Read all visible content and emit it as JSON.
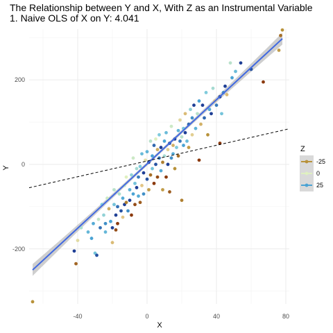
{
  "chart_data": {
    "type": "scatter",
    "title": "The Relationship between Y and X, With Z as an Instrumental Variable",
    "subtitle": "1. Naive OLS of  X on Y: 4.041",
    "xlabel": "X",
    "ylabel": "Y",
    "xlim": [
      -68,
      82
    ],
    "ylim": [
      -330,
      320
    ],
    "x_ticks": [
      -40,
      0,
      40,
      80
    ],
    "x_tick_labels": [
      "-40",
      "0",
      "40",
      "80"
    ],
    "y_ticks": [
      -200,
      0,
      200
    ],
    "y_tick_labels": [
      "-200",
      "0",
      "200"
    ],
    "grid": true,
    "legend": {
      "title": "Z",
      "position": "right",
      "entries": [
        {
          "label": "-25",
          "color": "#b8923a"
        },
        {
          "label": "0",
          "color": "#dff0c0"
        },
        {
          "label": "25",
          "color": "#4aa3d4"
        }
      ]
    },
    "fit_line": {
      "intercept": 1,
      "slope": 3.8,
      "color": "#4169e1",
      "band_color": "#bdbdbd",
      "band_halfwidth_ends": 14,
      "band_halfwidth_center": 4
    },
    "naive_line": {
      "intercept": 8,
      "slope": 0.93,
      "style": "dashed",
      "color": "#000000"
    },
    "z_color_scale": [
      "#8b3a0e",
      "#b8923a",
      "#e3c585",
      "#dff0c0",
      "#7fcbdc",
      "#4aa3d4",
      "#1f3f95"
    ],
    "points": [
      {
        "x": -66,
        "y": -325,
        "z": -20
      },
      {
        "x": -42,
        "y": -205,
        "z": 30
      },
      {
        "x": -41,
        "y": -235,
        "z": -25
      },
      {
        "x": -40,
        "y": -180,
        "z": -5
      },
      {
        "x": -38,
        "y": -150,
        "z": 5
      },
      {
        "x": -34,
        "y": -160,
        "z": 15
      },
      {
        "x": -32,
        "y": -175,
        "z": 20
      },
      {
        "x": -31,
        "y": -140,
        "z": 18
      },
      {
        "x": -30,
        "y": -210,
        "z": 12
      },
      {
        "x": -29,
        "y": -215,
        "z": 28
      },
      {
        "x": -28,
        "y": -130,
        "z": 3
      },
      {
        "x": -27,
        "y": -150,
        "z": 25
      },
      {
        "x": -26,
        "y": -95,
        "z": 10
      },
      {
        "x": -25,
        "y": -120,
        "z": 8
      },
      {
        "x": -24,
        "y": -140,
        "z": 22
      },
      {
        "x": -24,
        "y": -160,
        "z": 15
      },
      {
        "x": -23,
        "y": -80,
        "z": 2
      },
      {
        "x": -22,
        "y": -105,
        "z": -15
      },
      {
        "x": -21,
        "y": -135,
        "z": 20
      },
      {
        "x": -20,
        "y": -150,
        "z": 30
      },
      {
        "x": -20,
        "y": -185,
        "z": -12
      },
      {
        "x": -19,
        "y": -60,
        "z": 4
      },
      {
        "x": -19,
        "y": -95,
        "z": 12
      },
      {
        "x": -18,
        "y": -120,
        "z": 30
      },
      {
        "x": -18,
        "y": -155,
        "z": -28
      },
      {
        "x": -17,
        "y": -100,
        "z": 25
      },
      {
        "x": -17,
        "y": -140,
        "z": -30
      },
      {
        "x": -16,
        "y": -70,
        "z": 5
      },
      {
        "x": -15,
        "y": -110,
        "z": 28
      },
      {
        "x": -14,
        "y": -125,
        "z": -10
      },
      {
        "x": -14,
        "y": -80,
        "z": 18
      },
      {
        "x": -13,
        "y": -95,
        "z": 30
      },
      {
        "x": -13,
        "y": -50,
        "z": 3
      },
      {
        "x": -12,
        "y": -30,
        "z": 0
      },
      {
        "x": -12,
        "y": -90,
        "z": -22
      },
      {
        "x": -11,
        "y": -110,
        "z": 22
      },
      {
        "x": -10,
        "y": -85,
        "z": 30
      },
      {
        "x": -10,
        "y": -60,
        "z": 16
      },
      {
        "x": -9,
        "y": -120,
        "z": -30
      },
      {
        "x": -9,
        "y": -25,
        "z": 8
      },
      {
        "x": -8,
        "y": -70,
        "z": 20
      },
      {
        "x": -8,
        "y": 15,
        "z": 2
      },
      {
        "x": -7,
        "y": -45,
        "z": 12
      },
      {
        "x": -7,
        "y": -95,
        "z": -28
      },
      {
        "x": -6,
        "y": -55,
        "z": 30
      },
      {
        "x": -6,
        "y": -10,
        "z": 6
      },
      {
        "x": -5,
        "y": -75,
        "z": 18
      },
      {
        "x": -5,
        "y": -30,
        "z": 24
      },
      {
        "x": -4,
        "y": -90,
        "z": -26
      },
      {
        "x": -4,
        "y": -5,
        "z": 10
      },
      {
        "x": -3,
        "y": -50,
        "z": -10
      },
      {
        "x": -3,
        "y": 25,
        "z": 14
      },
      {
        "x": -2,
        "y": -20,
        "z": 30
      },
      {
        "x": -2,
        "y": -70,
        "z": 22
      },
      {
        "x": -1,
        "y": 10,
        "z": -4
      },
      {
        "x": 0,
        "y": -35,
        "z": 28
      },
      {
        "x": 0,
        "y": 30,
        "z": 16
      },
      {
        "x": 1,
        "y": -60,
        "z": -18
      },
      {
        "x": 1,
        "y": 5,
        "z": 30
      },
      {
        "x": 2,
        "y": -25,
        "z": -24
      },
      {
        "x": 2,
        "y": 55,
        "z": 4
      },
      {
        "x": 3,
        "y": 20,
        "z": 20
      },
      {
        "x": 3,
        "y": -10,
        "z": 12
      },
      {
        "x": 4,
        "y": 45,
        "z": 26
      },
      {
        "x": 4,
        "y": -45,
        "z": -30
      },
      {
        "x": 5,
        "y": 60,
        "z": 0
      },
      {
        "x": 5,
        "y": 0,
        "z": 28
      },
      {
        "x": 6,
        "y": 35,
        "z": -15
      },
      {
        "x": 6,
        "y": -30,
        "z": -28
      },
      {
        "x": 7,
        "y": 15,
        "z": 24
      },
      {
        "x": 7,
        "y": 70,
        "z": 10
      },
      {
        "x": 8,
        "y": -15,
        "z": 18
      },
      {
        "x": 8,
        "y": 40,
        "z": 30
      },
      {
        "x": 9,
        "y": 5,
        "z": -22
      },
      {
        "x": 9,
        "y": -60,
        "z": -18
      },
      {
        "x": 10,
        "y": 55,
        "z": 20
      },
      {
        "x": 10,
        "y": 20,
        "z": 6
      },
      {
        "x": 11,
        "y": -30,
        "z": -30
      },
      {
        "x": 11,
        "y": 75,
        "z": 14
      },
      {
        "x": 12,
        "y": 35,
        "z": -8
      },
      {
        "x": 12,
        "y": 0,
        "z": 30
      },
      {
        "x": 13,
        "y": 50,
        "z": 28
      },
      {
        "x": 13,
        "y": -65,
        "z": -26
      },
      {
        "x": 14,
        "y": 15,
        "z": 22
      },
      {
        "x": 14,
        "y": 90,
        "z": 2
      },
      {
        "x": 15,
        "y": 45,
        "z": -14
      },
      {
        "x": 15,
        "y": 25,
        "z": 18
      },
      {
        "x": 16,
        "y": 60,
        "z": 30
      },
      {
        "x": 16,
        "y": -10,
        "z": -20
      },
      {
        "x": 17,
        "y": 40,
        "z": 10
      },
      {
        "x": 18,
        "y": 80,
        "z": 16
      },
      {
        "x": 18,
        "y": 20,
        "z": -24
      },
      {
        "x": 19,
        "y": 55,
        "z": 24
      },
      {
        "x": 19,
        "y": 105,
        "z": -6
      },
      {
        "x": 20,
        "y": 65,
        "z": 4
      },
      {
        "x": 20,
        "y": -85,
        "z": -22
      },
      {
        "x": 21,
        "y": 85,
        "z": 12
      },
      {
        "x": 21,
        "y": 45,
        "z": 20
      },
      {
        "x": 22,
        "y": 120,
        "z": -12
      },
      {
        "x": 22,
        "y": 75,
        "z": 30
      },
      {
        "x": 23,
        "y": 55,
        "z": 14
      },
      {
        "x": 24,
        "y": 95,
        "z": 26
      },
      {
        "x": 24,
        "y": 40,
        "z": -18
      },
      {
        "x": 25,
        "y": 130,
        "z": 8
      },
      {
        "x": 26,
        "y": 110,
        "z": 22
      },
      {
        "x": 26,
        "y": 70,
        "z": -8
      },
      {
        "x": 27,
        "y": 140,
        "z": 30
      },
      {
        "x": 28,
        "y": 85,
        "z": 16
      },
      {
        "x": 29,
        "y": 120,
        "z": 4
      },
      {
        "x": 30,
        "y": 10,
        "z": -30
      },
      {
        "x": 30,
        "y": 150,
        "z": 20
      },
      {
        "x": 31,
        "y": 95,
        "z": -14
      },
      {
        "x": 32,
        "y": 140,
        "z": 30
      },
      {
        "x": 33,
        "y": 110,
        "z": 26
      },
      {
        "x": 34,
        "y": 170,
        "z": 10
      },
      {
        "x": 35,
        "y": 70,
        "z": -20
      },
      {
        "x": 36,
        "y": 130,
        "z": 18
      },
      {
        "x": 37,
        "y": 120,
        "z": 30
      },
      {
        "x": 38,
        "y": 180,
        "z": 6
      },
      {
        "x": 39,
        "y": 150,
        "z": -10
      },
      {
        "x": 40,
        "y": 140,
        "z": 24
      },
      {
        "x": 42,
        "y": 50,
        "z": -30
      },
      {
        "x": 42,
        "y": 160,
        "z": 30
      },
      {
        "x": 43,
        "y": 120,
        "z": 12
      },
      {
        "x": 44,
        "y": 170,
        "z": 22
      },
      {
        "x": 45,
        "y": 185,
        "z": 30
      },
      {
        "x": 46,
        "y": 165,
        "z": -12
      },
      {
        "x": 48,
        "y": 240,
        "z": 4
      },
      {
        "x": 49,
        "y": 205,
        "z": 20
      },
      {
        "x": 51,
        "y": 220,
        "z": 14
      },
      {
        "x": 54,
        "y": 240,
        "z": 30
      },
      {
        "x": 60,
        "y": 225,
        "z": 28
      },
      {
        "x": 67,
        "y": 195,
        "z": -30
      },
      {
        "x": 76,
        "y": 270,
        "z": -18
      },
      {
        "x": 77,
        "y": 305,
        "z": -24
      },
      {
        "x": 78,
        "y": 318,
        "z": -20
      }
    ]
  }
}
